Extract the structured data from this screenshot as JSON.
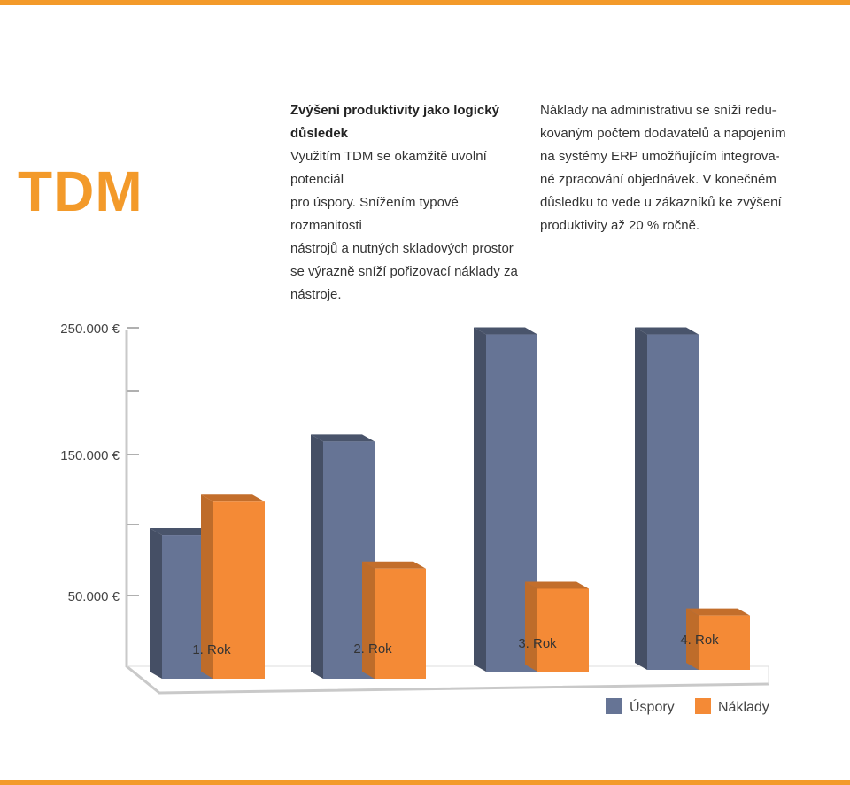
{
  "colors": {
    "accent": "#f39a2a",
    "ospory_front": "#667495",
    "naklady_front": "#f48a36"
  },
  "logo": "TDM",
  "col1": {
    "heading": [
      "Zvýšení produktivity jako logický",
      "důsledek"
    ],
    "lines": [
      "Využitím TDM se okamžitě uvolní potenciál",
      "pro úspory. Snížením typové rozmanitosti",
      "nástrojů a nutných skladových prostor",
      "se výrazně sníží pořizovací náklady za",
      "nástroje."
    ]
  },
  "col2": {
    "lines": [
      "Náklady na administrativu se sníží redu-",
      "kovaným počtem dodavatelů a napojením",
      "na systémy ERP umožňujícím integrova-",
      "né zpracování objednávek. V konečném",
      "důsledku to vede u zákazníků ke zvýšení",
      "produktivity až 20 % ročně."
    ]
  },
  "chart_data": {
    "type": "bar",
    "categories": [
      "1. Rok",
      "2. Rok",
      "3. Rok",
      "4. Rok"
    ],
    "series": [
      {
        "name": "Úspory",
        "values": [
          95000,
          165000,
          245000,
          245000
        ]
      },
      {
        "name": "Náklady",
        "values": [
          120000,
          70000,
          55000,
          35000
        ]
      }
    ],
    "y_tick_labels": [
      "250.000 €",
      "150.000 €",
      "50.000 €"
    ],
    "legend": [
      "Úspory",
      "Náklady"
    ],
    "legend_position": "bottom-right"
  }
}
